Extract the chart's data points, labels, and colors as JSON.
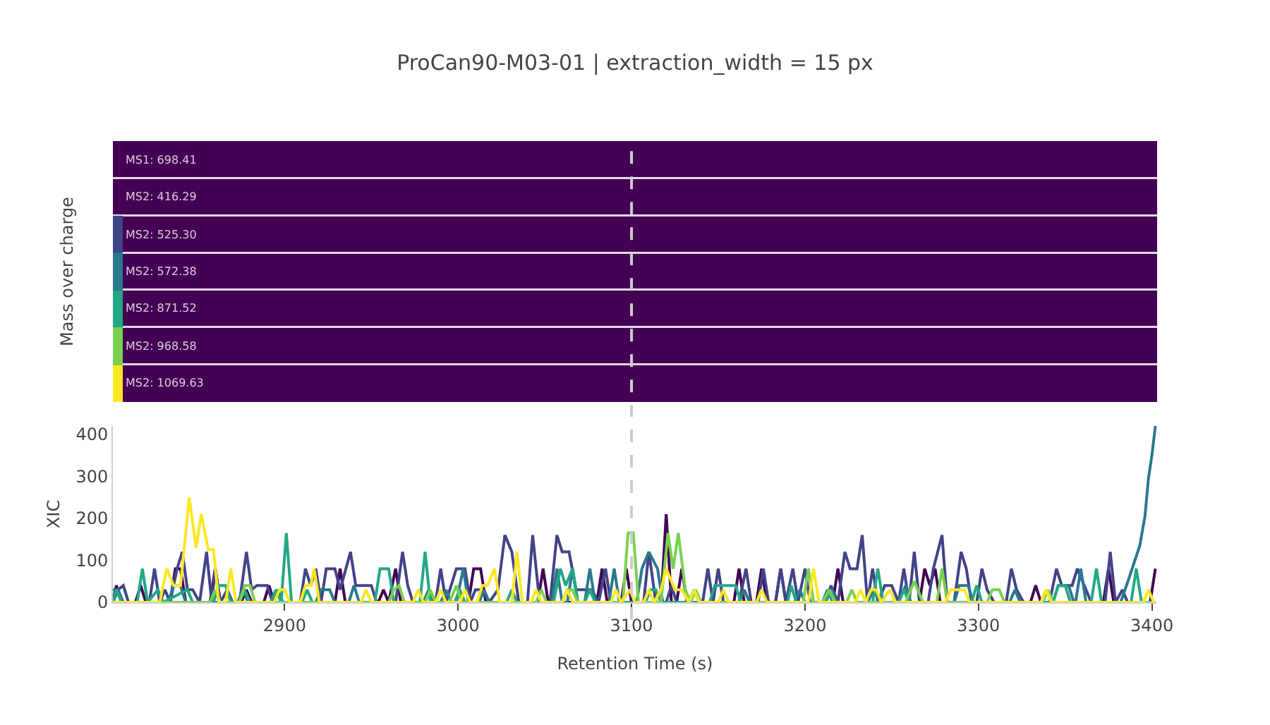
{
  "chart_data": [
    {
      "type": "other",
      "title": "ProCan90-M03-01 | extraction_width = 15 px",
      "ylabel": "Mass over charge",
      "annotations": [
        "MS1: 698.41",
        "MS2: 416.29",
        "MS2: 525.30",
        "MS2: 572.38",
        "MS2: 871.52",
        "MS2: 968.58",
        "MS2: 1069.63"
      ]
    },
    {
      "type": "line",
      "xlabel": "Retention Time (s)",
      "ylabel": "XIC",
      "xlim": [
        2801,
        3403
      ],
      "xticks": [
        2900,
        3000,
        3100,
        3200,
        3300,
        3400
      ],
      "ylim": [
        0,
        420
      ],
      "yticks": [
        0,
        100,
        200,
        300,
        400
      ],
      "ref_lines": [
        {
          "axis": "x",
          "value": 3100,
          "color": "#cccccc",
          "line_style": "dashed"
        }
      ],
      "series": [
        {
          "color": "#440154",
          "x": [
            2801,
            2803,
            2806,
            2814,
            2817,
            2820,
            2834,
            2837,
            2840,
            2843,
            2857,
            2860,
            2863,
            2875,
            2878,
            2881,
            2888,
            2891,
            2894,
            2929,
            2932,
            2935,
            2954,
            2957,
            2960,
            2964,
            2967,
            3006,
            3009,
            3013,
            3016,
            3046,
            3049,
            3052,
            3080,
            3083,
            3086,
            3094,
            3097,
            3100,
            3117,
            3120,
            3123,
            3126,
            3129,
            3132,
            3159,
            3162,
            3165,
            3172,
            3175,
            3178,
            3183,
            3186,
            3189,
            3216,
            3219,
            3222,
            3266,
            3269,
            3272,
            3275,
            3278,
            3330,
            3333,
            3336,
            3372,
            3375,
            3378,
            3399,
            3402
          ],
          "values": [
            0,
            40,
            0,
            0,
            40,
            0,
            0,
            80,
            80,
            0,
            0,
            80,
            0,
            0,
            30,
            0,
            0,
            40,
            0,
            0,
            80,
            0,
            0,
            30,
            0,
            80,
            0,
            0,
            80,
            80,
            0,
            0,
            80,
            0,
            0,
            80,
            0,
            0,
            80,
            0,
            0,
            210,
            0,
            0,
            80,
            0,
            0,
            80,
            0,
            0,
            80,
            0,
            0,
            80,
            0,
            0,
            80,
            0,
            0,
            80,
            40,
            80,
            0,
            0,
            40,
            0,
            0,
            80,
            0,
            0,
            80
          ]
        },
        {
          "color": "#414487",
          "x": [
            2801,
            2804,
            2807,
            2810,
            2822,
            2825,
            2828,
            2831,
            2834,
            2838,
            2841,
            2844,
            2847,
            2851,
            2855,
            2858,
            2860,
            2863,
            2867,
            2870,
            2874,
            2878,
            2881,
            2884,
            2890,
            2893,
            2909,
            2912,
            2915,
            2918,
            2921,
            2924,
            2929,
            2932,
            2938,
            2941,
            2950,
            2953,
            2964,
            2968,
            2971,
            2974,
            2987,
            2990,
            2993,
            2999,
            3004,
            3007,
            3010,
            3014,
            3018,
            3023,
            3027,
            3031,
            3035,
            3040,
            3043,
            3047,
            3053,
            3057,
            3060,
            3064,
            3068,
            3073,
            3077,
            3081,
            3085,
            3088,
            3107,
            3110,
            3114,
            3120,
            3123,
            3126,
            3141,
            3144,
            3147,
            3150,
            3153,
            3162,
            3166,
            3169,
            3173,
            3176,
            3179,
            3183,
            3186,
            3189,
            3193,
            3196,
            3200,
            3203,
            3212,
            3215,
            3219,
            3223,
            3226,
            3230,
            3233,
            3236,
            3239,
            3242,
            3246,
            3250,
            3254,
            3257,
            3260,
            3263,
            3266,
            3271,
            3274,
            3279,
            3282,
            3286,
            3290,
            3293,
            3296,
            3299,
            3302,
            3305,
            3309,
            3316,
            3319,
            3322,
            3326,
            3341,
            3345,
            3348,
            3354,
            3357,
            3361,
            3365,
            3373,
            3376,
            3379,
            3383,
            3386,
            3402
          ],
          "values": [
            0,
            30,
            40,
            0,
            0,
            80,
            0,
            30,
            0,
            80,
            120,
            30,
            30,
            0,
            120,
            0,
            80,
            0,
            30,
            0,
            0,
            120,
            30,
            40,
            40,
            0,
            0,
            80,
            40,
            80,
            0,
            80,
            80,
            30,
            120,
            40,
            40,
            0,
            0,
            120,
            40,
            0,
            0,
            80,
            0,
            80,
            80,
            0,
            30,
            30,
            0,
            30,
            160,
            120,
            0,
            0,
            160,
            0,
            0,
            160,
            120,
            120,
            30,
            30,
            30,
            0,
            80,
            0,
            0,
            120,
            0,
            0,
            40,
            0,
            0,
            80,
            0,
            80,
            0,
            0,
            80,
            0,
            0,
            80,
            0,
            0,
            80,
            0,
            80,
            0,
            80,
            0,
            0,
            40,
            0,
            120,
            80,
            80,
            160,
            0,
            80,
            0,
            40,
            40,
            0,
            80,
            0,
            120,
            0,
            0,
            80,
            160,
            0,
            0,
            120,
            80,
            0,
            0,
            80,
            30,
            0,
            0,
            80,
            30,
            0,
            0,
            80,
            40,
            40,
            80,
            40,
            0,
            0,
            120,
            0,
            30,
            0,
            0
          ]
        },
        {
          "color": "#2a788e",
          "x": [
            2801,
            2804,
            2807,
            2833,
            2836,
            2840,
            2843,
            2873,
            2876,
            2879,
            2893,
            2896,
            2899,
            2918,
            2921,
            2926,
            2929,
            2937,
            2940,
            2943,
            2980,
            2983,
            2986,
            2990,
            2993,
            2996,
            2999,
            3003,
            3006,
            3012,
            3015,
            3018,
            3054,
            3057,
            3060,
            3063,
            3066,
            3069,
            3073,
            3076,
            3079,
            3087,
            3090,
            3093,
            3103,
            3106,
            3110,
            3115,
            3118,
            3133,
            3136,
            3139,
            3162,
            3165,
            3168,
            3194,
            3197,
            3200,
            3210,
            3213,
            3216,
            3236,
            3240,
            3243,
            3254,
            3258,
            3261,
            3286,
            3289,
            3294,
            3297,
            3318,
            3321,
            3324,
            3343,
            3346,
            3352,
            3355,
            3356,
            3359,
            3362,
            3382,
            3387,
            3393,
            3396,
            3398,
            3400,
            3402
          ],
          "values": [
            30,
            30,
            0,
            0,
            40,
            40,
            0,
            0,
            30,
            0,
            0,
            30,
            0,
            0,
            30,
            30,
            0,
            0,
            40,
            0,
            0,
            30,
            0,
            0,
            30,
            0,
            0,
            80,
            0,
            0,
            30,
            0,
            0,
            80,
            0,
            0,
            80,
            0,
            0,
            80,
            0,
            0,
            80,
            0,
            0,
            80,
            120,
            80,
            0,
            0,
            30,
            0,
            0,
            30,
            0,
            0,
            30,
            0,
            0,
            30,
            0,
            0,
            30,
            0,
            0,
            40,
            0,
            0,
            40,
            40,
            0,
            0,
            30,
            0,
            0,
            40,
            40,
            0,
            0,
            80,
            0,
            0,
            60,
            135,
            205,
            295,
            350,
            420
          ]
        },
        {
          "color": "#22a884",
          "x": [
            2801,
            2803,
            2806,
            2815,
            2818,
            2821,
            2827,
            2830,
            2844,
            2847,
            2859,
            2862,
            2866,
            2869,
            2874,
            2877,
            2880,
            2892,
            2895,
            2898,
            2901,
            2904,
            2910,
            2913,
            2916,
            2952,
            2955,
            2960,
            2963,
            2978,
            2981,
            2984,
            2998,
            3001,
            3004,
            3028,
            3031,
            3034,
            3055,
            3059,
            3062,
            3066,
            3069,
            3073,
            3076,
            3079,
            3108,
            3111,
            3114,
            3117,
            3145,
            3148,
            3160,
            3163,
            3190,
            3192,
            3195,
            3212,
            3215,
            3218,
            3239,
            3242,
            3245,
            3254,
            3257,
            3260,
            3296,
            3299,
            3302,
            3343,
            3346,
            3350,
            3353,
            3365,
            3368,
            3371,
            3388,
            3391,
            3394,
            3402
          ],
          "values": [
            0,
            30,
            0,
            0,
            80,
            0,
            30,
            0,
            30,
            0,
            0,
            40,
            40,
            0,
            0,
            30,
            0,
            0,
            30,
            0,
            165,
            0,
            0,
            30,
            0,
            0,
            80,
            80,
            0,
            0,
            120,
            0,
            0,
            30,
            0,
            0,
            30,
            0,
            0,
            80,
            40,
            80,
            0,
            0,
            30,
            0,
            0,
            30,
            30,
            0,
            0,
            40,
            40,
            0,
            0,
            40,
            0,
            0,
            30,
            0,
            0,
            80,
            0,
            0,
            30,
            0,
            0,
            40,
            0,
            0,
            40,
            40,
            0,
            0,
            80,
            0,
            0,
            80,
            0,
            0
          ]
        },
        {
          "color": "#7ad151",
          "x": [
            2801,
            2857,
            2860,
            2863,
            2874,
            2877,
            2880,
            2883,
            2960,
            2963,
            2966,
            2969,
            2981,
            2984,
            2987,
            2995,
            2999,
            3002,
            3045,
            3048,
            3051,
            3060,
            3063,
            3066,
            3069,
            3095,
            3098,
            3101,
            3104,
            3117,
            3121,
            3124,
            3127,
            3131,
            3134,
            3137,
            3140,
            3199,
            3202,
            3205,
            3210,
            3214,
            3217,
            3224,
            3227,
            3230,
            3258,
            3263,
            3268,
            3276,
            3279,
            3282,
            3305,
            3308,
            3312,
            3315,
            3337,
            3340,
            3343,
            3402
          ],
          "values": [
            0,
            0,
            30,
            0,
            0,
            40,
            40,
            0,
            0,
            30,
            40,
            0,
            0,
            30,
            0,
            0,
            40,
            0,
            0,
            30,
            0,
            0,
            30,
            30,
            0,
            0,
            165,
            165,
            0,
            0,
            165,
            80,
            165,
            30,
            0,
            30,
            0,
            0,
            80,
            0,
            0,
            30,
            0,
            0,
            30,
            0,
            0,
            50,
            0,
            0,
            80,
            0,
            0,
            30,
            30,
            0,
            0,
            30,
            0,
            0
          ]
        },
        {
          "color": "#fde725",
          "x": [
            2801,
            2828,
            2832,
            2836,
            2840,
            2845,
            2849,
            2852,
            2856,
            2859,
            2862,
            2866,
            2869,
            2872,
            2894,
            2897,
            2900,
            2903,
            2909,
            2912,
            2915,
            2917,
            2920,
            2944,
            2947,
            2950,
            2974,
            2977,
            2980,
            2987,
            2990,
            2993,
            3001,
            3004,
            3007,
            3011,
            3014,
            3017,
            3021,
            3024,
            3031,
            3034,
            3037,
            3042,
            3045,
            3048,
            3060,
            3063,
            3066,
            3088,
            3091,
            3094,
            3099,
            3102,
            3107,
            3110,
            3113,
            3117,
            3120,
            3125,
            3129,
            3133,
            3136,
            3139,
            3150,
            3153,
            3156,
            3172,
            3175,
            3178,
            3202,
            3205,
            3208,
            3229,
            3232,
            3235,
            3238,
            3241,
            3244,
            3249,
            3252,
            3281,
            3284,
            3292,
            3295,
            3336,
            3339,
            3342,
            3395,
            3398,
            3401,
            3402
          ],
          "values": [
            0,
            0,
            80,
            40,
            40,
            250,
            130,
            210,
            125,
            125,
            0,
            0,
            80,
            0,
            0,
            30,
            30,
            0,
            0,
            40,
            40,
            80,
            0,
            0,
            30,
            0,
            0,
            30,
            0,
            0,
            30,
            0,
            0,
            30,
            0,
            0,
            40,
            40,
            80,
            0,
            0,
            120,
            0,
            0,
            30,
            0,
            0,
            30,
            0,
            0,
            30,
            0,
            30,
            0,
            0,
            30,
            0,
            30,
            80,
            30,
            30,
            0,
            30,
            0,
            0,
            30,
            0,
            0,
            30,
            0,
            0,
            80,
            0,
            0,
            30,
            0,
            30,
            30,
            0,
            30,
            0,
            0,
            30,
            30,
            0,
            0,
            30,
            0,
            0,
            30,
            0,
            0
          ]
        }
      ]
    }
  ]
}
